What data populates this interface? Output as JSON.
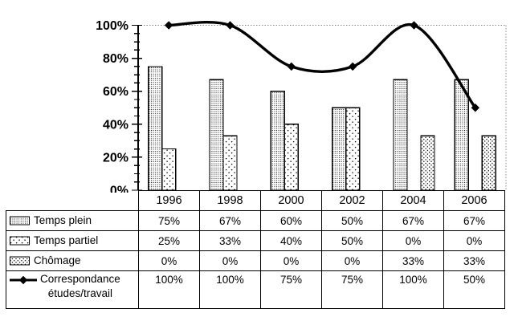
{
  "chart_data": {
    "type": "bar+line",
    "title": "",
    "categories": [
      "1996",
      "1998",
      "2000",
      "2002",
      "2004",
      "2006"
    ],
    "series": [
      {
        "name": "Temps plein",
        "type": "bar",
        "pattern": "dense-dots",
        "values": [
          75,
          67,
          60,
          50,
          67,
          67
        ]
      },
      {
        "name": "Temps partiel",
        "type": "bar",
        "pattern": "sparse-dots",
        "values": [
          25,
          33,
          40,
          50,
          0,
          0
        ]
      },
      {
        "name": "Chômage",
        "type": "bar",
        "pattern": "diagonal-dots",
        "values": [
          0,
          0,
          0,
          0,
          33,
          33
        ]
      },
      {
        "name": "Correspondance études/travail",
        "type": "line",
        "marker": "diamond",
        "smooth": true,
        "values": [
          100,
          100,
          75,
          75,
          100,
          50
        ]
      }
    ],
    "y_axis": {
      "tick_labels": [
        "0%",
        "20%",
        "40%",
        "60%",
        "80%",
        "100%"
      ],
      "min": 0,
      "max": 100,
      "major_step": 20,
      "minor_step": 5
    },
    "grid": "dotted line at 100% plus dotted right plot border",
    "legend_position": "table-left-column"
  },
  "table": {
    "rows": [
      {
        "label": "Temps plein",
        "label_lines": [
          "Temps plein"
        ],
        "swatch": "dense-dots-swatch",
        "values": [
          "75%",
          "67%",
          "60%",
          "50%",
          "67%",
          "67%"
        ]
      },
      {
        "label": "Temps partiel",
        "label_lines": [
          "Temps partiel"
        ],
        "swatch": "sparse-dots-swatch",
        "values": [
          "25%",
          "33%",
          "40%",
          "50%",
          "0%",
          "0%"
        ]
      },
      {
        "label": "Chômage",
        "label_lines": [
          "Chômage"
        ],
        "swatch": "diagonal-dots-swatch",
        "values": [
          "0%",
          "0%",
          "0%",
          "0%",
          "33%",
          "33%"
        ]
      },
      {
        "label": "Correspondance études/travail",
        "label_lines": [
          "Correspondance",
          "études/travail"
        ],
        "swatch": "line-diamond-swatch",
        "values": [
          "100%",
          "100%",
          "75%",
          "75%",
          "100%",
          "50%"
        ]
      }
    ]
  },
  "colors": {
    "ink": "#000000",
    "plot_border": "#888888",
    "background": "#ffffff"
  }
}
